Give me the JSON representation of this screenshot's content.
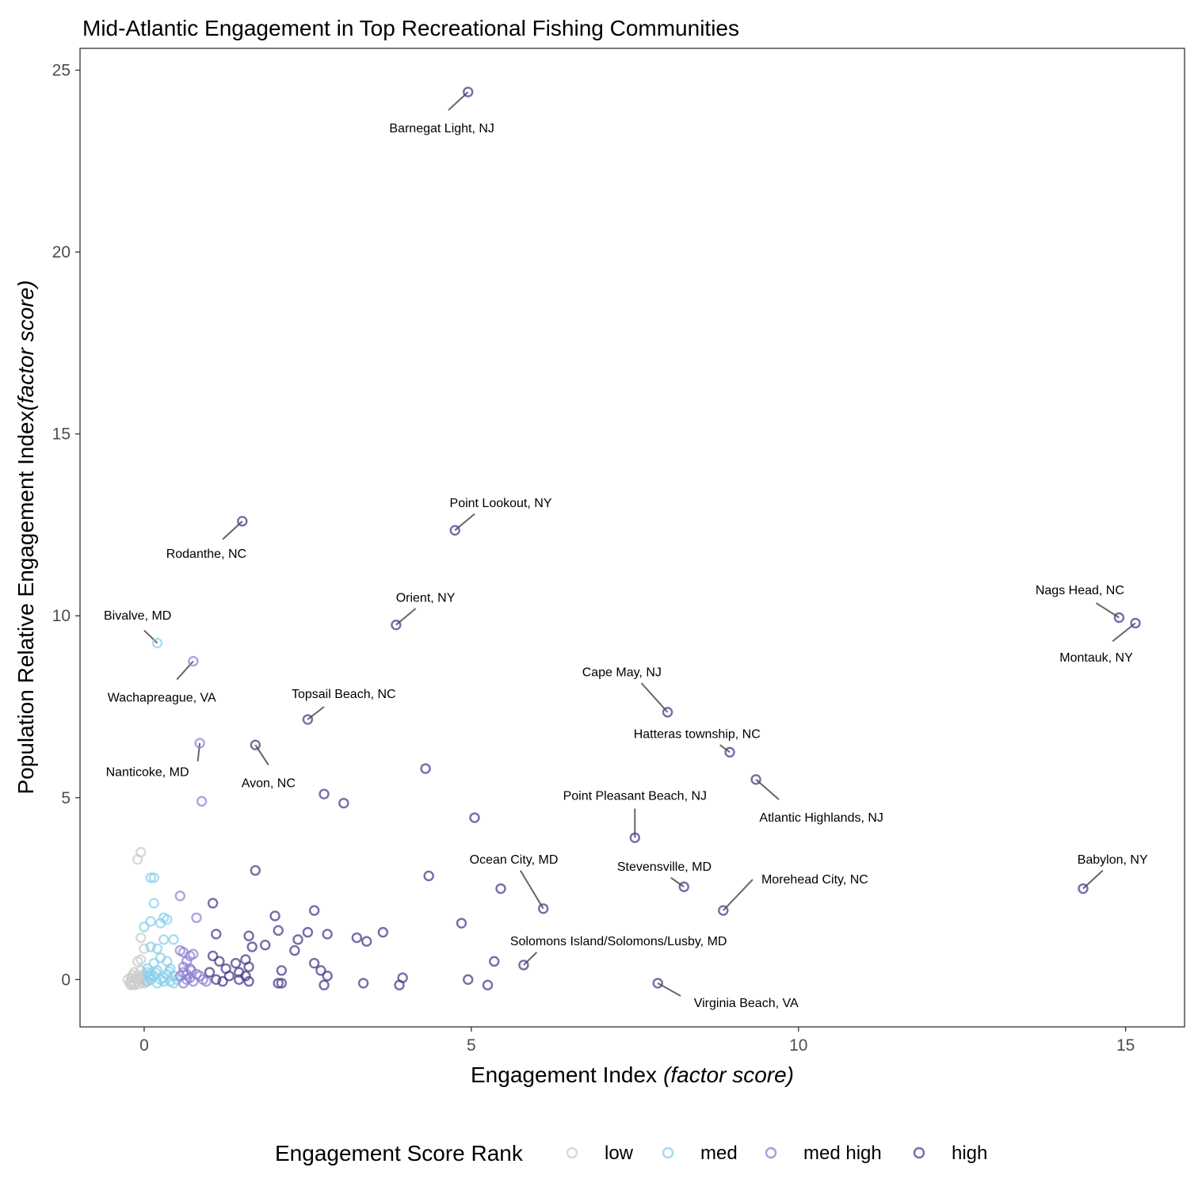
{
  "chart_data": {
    "type": "scatter",
    "title": "Mid-Atlantic Engagement in Top Recreational Fishing Communities",
    "xlabel": "Engagement Index",
    "xlabel_italic": "(factor score)",
    "ylabel": "Population Relative Engagement Index",
    "ylabel_italic": "(factor score)",
    "xlim": [
      -0.98,
      15.9
    ],
    "ylim": [
      -1.3,
      25.6
    ],
    "xticks": [
      0,
      5,
      10,
      15
    ],
    "yticks": [
      0,
      5,
      10,
      15,
      20,
      25
    ],
    "grid": false,
    "legend_position": "bottom",
    "legend_title": "Engagement Score Rank",
    "series": [
      {
        "name": "low",
        "color": "#cccccc",
        "points": [
          [
            -0.2,
            -0.15
          ],
          [
            -0.15,
            -0.1
          ],
          [
            -0.1,
            -0.05
          ],
          [
            -0.05,
            0.0
          ],
          [
            0.0,
            -0.1
          ],
          [
            -0.2,
            0.05
          ],
          [
            -0.1,
            0.1
          ],
          [
            -0.15,
            0.2
          ],
          [
            -0.05,
            0.25
          ],
          [
            0.0,
            0.15
          ],
          [
            -0.1,
            0.5
          ],
          [
            -0.05,
            0.55
          ],
          [
            0.0,
            0.85
          ],
          [
            -0.05,
            1.15
          ],
          [
            -0.1,
            3.3
          ],
          [
            -0.05,
            3.5
          ],
          [
            -0.2,
            -0.05
          ],
          [
            -0.25,
            0.0
          ],
          [
            -0.15,
            -0.15
          ],
          [
            0.0,
            0.0
          ],
          [
            -0.08,
            -0.12
          ],
          [
            -0.12,
            0.02
          ],
          [
            -0.02,
            0.08
          ],
          [
            0.02,
            -0.05
          ],
          [
            -0.18,
            0.12
          ],
          [
            -0.22,
            -0.1
          ]
        ]
      },
      {
        "name": "med",
        "color": "#87ceeb",
        "points": [
          [
            0.05,
            -0.05
          ],
          [
            0.1,
            0.0
          ],
          [
            0.15,
            0.1
          ],
          [
            0.2,
            -0.1
          ],
          [
            0.3,
            0.05
          ],
          [
            0.35,
            0.15
          ],
          [
            0.4,
            -0.05
          ],
          [
            0.45,
            0.1
          ],
          [
            0.5,
            0.0
          ],
          [
            0.05,
            0.3
          ],
          [
            0.15,
            0.45
          ],
          [
            0.25,
            0.6
          ],
          [
            0.35,
            0.5
          ],
          [
            0.1,
            0.9
          ],
          [
            0.2,
            0.85
          ],
          [
            0.3,
            1.1
          ],
          [
            0.45,
            1.1
          ],
          [
            0.0,
            1.45
          ],
          [
            0.1,
            1.6
          ],
          [
            0.25,
            1.55
          ],
          [
            0.3,
            1.7
          ],
          [
            0.35,
            1.65
          ],
          [
            0.15,
            2.1
          ],
          [
            0.1,
            2.8
          ],
          [
            0.15,
            2.8
          ],
          [
            0.2,
            9.25
          ],
          [
            0.05,
            0.2
          ],
          [
            0.2,
            0.25
          ],
          [
            0.4,
            0.3
          ],
          [
            0.1,
            0.15
          ],
          [
            0.25,
            0.0
          ],
          [
            0.3,
            -0.05
          ],
          [
            0.45,
            -0.1
          ],
          [
            0.08,
            0.08
          ],
          [
            0.18,
            0.18
          ],
          [
            0.38,
            0.22
          ]
        ]
      },
      {
        "name": "med high",
        "color": "#8c7fd1",
        "points": [
          [
            0.55,
            0.1
          ],
          [
            0.6,
            0.2
          ],
          [
            0.65,
            0.0
          ],
          [
            0.7,
            0.3
          ],
          [
            0.75,
            -0.05
          ],
          [
            0.8,
            0.15
          ],
          [
            0.85,
            0.1
          ],
          [
            0.6,
            0.35
          ],
          [
            0.65,
            0.5
          ],
          [
            0.7,
            0.65
          ],
          [
            0.55,
            0.8
          ],
          [
            0.6,
            0.75
          ],
          [
            0.75,
            0.7
          ],
          [
            0.55,
            2.3
          ],
          [
            0.8,
            1.7
          ],
          [
            0.75,
            8.75
          ],
          [
            0.85,
            6.5
          ],
          [
            0.88,
            4.9
          ],
          [
            0.9,
            0.0
          ],
          [
            0.95,
            -0.05
          ],
          [
            0.65,
            0.15
          ],
          [
            0.7,
            0.05
          ],
          [
            0.6,
            -0.1
          ],
          [
            0.72,
            0.25
          ]
        ]
      },
      {
        "name": "high",
        "color": "#483d8b",
        "points": [
          [
            4.95,
            24.4
          ],
          [
            1.5,
            12.6
          ],
          [
            4.75,
            12.35
          ],
          [
            3.85,
            9.75
          ],
          [
            14.9,
            9.95
          ],
          [
            15.15,
            9.8
          ],
          [
            8.0,
            7.35
          ],
          [
            2.5,
            7.15
          ],
          [
            1.7,
            6.45
          ],
          [
            8.95,
            6.25
          ],
          [
            4.3,
            5.8
          ],
          [
            9.35,
            5.5
          ],
          [
            2.75,
            5.1
          ],
          [
            3.05,
            4.85
          ],
          [
            5.05,
            4.45
          ],
          [
            7.5,
            3.9
          ],
          [
            1.7,
            3.0
          ],
          [
            4.35,
            2.85
          ],
          [
            5.45,
            2.5
          ],
          [
            8.25,
            2.55
          ],
          [
            14.35,
            2.5
          ],
          [
            6.1,
            1.95
          ],
          [
            8.85,
            1.9
          ],
          [
            1.05,
            2.1
          ],
          [
            2.6,
            1.9
          ],
          [
            2.0,
            1.75
          ],
          [
            4.85,
            1.55
          ],
          [
            1.1,
            1.25
          ],
          [
            1.6,
            1.2
          ],
          [
            1.65,
            0.9
          ],
          [
            1.85,
            0.95
          ],
          [
            2.05,
            1.35
          ],
          [
            2.35,
            1.1
          ],
          [
            2.5,
            1.3
          ],
          [
            2.8,
            1.25
          ],
          [
            3.25,
            1.15
          ],
          [
            3.4,
            1.05
          ],
          [
            3.65,
            1.3
          ],
          [
            2.3,
            0.8
          ],
          [
            1.05,
            0.65
          ],
          [
            1.15,
            0.5
          ],
          [
            1.25,
            0.3
          ],
          [
            1.4,
            0.45
          ],
          [
            1.45,
            0.2
          ],
          [
            1.55,
            0.55
          ],
          [
            1.6,
            0.35
          ],
          [
            1.0,
            0.2
          ],
          [
            1.1,
            0.0
          ],
          [
            1.2,
            -0.05
          ],
          [
            1.3,
            0.1
          ],
          [
            1.45,
            0.0
          ],
          [
            1.55,
            0.1
          ],
          [
            1.6,
            -0.05
          ],
          [
            2.1,
            0.25
          ],
          [
            2.1,
            -0.1
          ],
          [
            2.05,
            -0.1
          ],
          [
            2.6,
            0.45
          ],
          [
            2.7,
            0.25
          ],
          [
            2.8,
            0.1
          ],
          [
            2.75,
            -0.15
          ],
          [
            3.35,
            -0.1
          ],
          [
            3.95,
            0.05
          ],
          [
            3.9,
            -0.15
          ],
          [
            4.95,
            0.0
          ],
          [
            5.25,
            -0.15
          ],
          [
            5.35,
            0.5
          ],
          [
            5.8,
            0.4
          ],
          [
            7.85,
            -0.1
          ]
        ]
      }
    ],
    "annotations": [
      {
        "text": "Barnegat Light, NJ",
        "point": [
          4.95,
          24.4
        ],
        "line_to": [
          4.65,
          23.9
        ],
        "label_at": [
          4.55,
          23.4
        ]
      },
      {
        "text": "Point Lookout, NY",
        "point": [
          4.75,
          12.35
        ],
        "line_to": [
          5.05,
          12.8
        ],
        "label_at": [
          5.45,
          13.1
        ]
      },
      {
        "text": "Rodanthe, NC",
        "point": [
          1.5,
          12.6
        ],
        "line_to": [
          1.2,
          12.1
        ],
        "label_at": [
          0.95,
          11.7
        ]
      },
      {
        "text": "Orient, NY",
        "point": [
          3.85,
          9.75
        ],
        "line_to": [
          4.15,
          10.2
        ],
        "label_at": [
          4.3,
          10.5
        ]
      },
      {
        "text": "Nags Head, NC",
        "point": [
          14.9,
          9.95
        ],
        "line_to": [
          14.55,
          10.35
        ],
        "label_at": [
          14.3,
          10.7
        ]
      },
      {
        "text": "Montauk, NY",
        "point": [
          15.15,
          9.8
        ],
        "line_to": [
          14.8,
          9.3
        ],
        "label_at": [
          14.55,
          8.85
        ]
      },
      {
        "text": "Bivalve, MD",
        "point": [
          0.2,
          9.25
        ],
        "line_to": [
          0.0,
          9.6
        ],
        "label_at": [
          -0.1,
          10.0
        ]
      },
      {
        "text": "Wachapreague, VA",
        "point": [
          0.75,
          8.75
        ],
        "line_to": [
          0.5,
          8.25
        ],
        "label_at": [
          0.27,
          7.75
        ]
      },
      {
        "text": "Cape May, NJ",
        "point": [
          8.0,
          7.35
        ],
        "line_to": [
          7.6,
          8.15
        ],
        "label_at": [
          7.3,
          8.45
        ]
      },
      {
        "text": "Topsail Beach, NC",
        "point": [
          2.5,
          7.15
        ],
        "line_to": [
          2.75,
          7.5
        ],
        "label_at": [
          3.05,
          7.85
        ]
      },
      {
        "text": "Hatteras township, NC",
        "point": [
          8.95,
          6.25
        ],
        "line_to": [
          8.8,
          6.45
        ],
        "label_at": [
          8.45,
          6.75
        ]
      },
      {
        "text": "Nanticoke, MD",
        "point": [
          0.85,
          6.5
        ],
        "line_to": [
          0.82,
          6.0
        ],
        "label_at": [
          0.05,
          5.7
        ]
      },
      {
        "text": "Avon, NC",
        "point": [
          1.7,
          6.45
        ],
        "line_to": [
          1.9,
          5.9
        ],
        "label_at": [
          1.9,
          5.4
        ]
      },
      {
        "text": "Atlantic Highlands, NJ",
        "point": [
          9.35,
          5.5
        ],
        "line_to": [
          9.7,
          4.95
        ],
        "label_at": [
          10.35,
          4.45
        ]
      },
      {
        "text": "Point Pleasant Beach, NJ",
        "point": [
          7.5,
          3.9
        ],
        "line_to": [
          7.5,
          4.7
        ],
        "label_at": [
          7.5,
          5.05
        ]
      },
      {
        "text": "Ocean City, MD",
        "point": [
          6.1,
          1.95
        ],
        "line_to": [
          5.75,
          3.0
        ],
        "label_at": [
          5.65,
          3.3
        ]
      },
      {
        "text": "Stevensville, MD",
        "point": [
          8.25,
          2.55
        ],
        "line_to": [
          8.05,
          2.8
        ],
        "label_at": [
          7.95,
          3.1
        ]
      },
      {
        "text": "Babylon, NY",
        "point": [
          14.35,
          2.5
        ],
        "line_to": [
          14.65,
          3.0
        ],
        "label_at": [
          14.8,
          3.3
        ]
      },
      {
        "text": "Morehead City, NC",
        "point": [
          8.85,
          1.9
        ],
        "line_to": [
          9.3,
          2.75
        ],
        "label_at": [
          10.25,
          2.75
        ]
      },
      {
        "text": "Solomons Island/Solomons/Lusby, MD",
        "point": [
          5.8,
          0.4
        ],
        "line_to": [
          6.0,
          0.75
        ],
        "label_at": [
          7.25,
          1.05
        ]
      },
      {
        "text": "Virginia Beach, VA",
        "point": [
          7.85,
          -0.1
        ],
        "line_to": [
          8.2,
          -0.45
        ],
        "label_at": [
          9.2,
          -0.65
        ]
      }
    ]
  }
}
